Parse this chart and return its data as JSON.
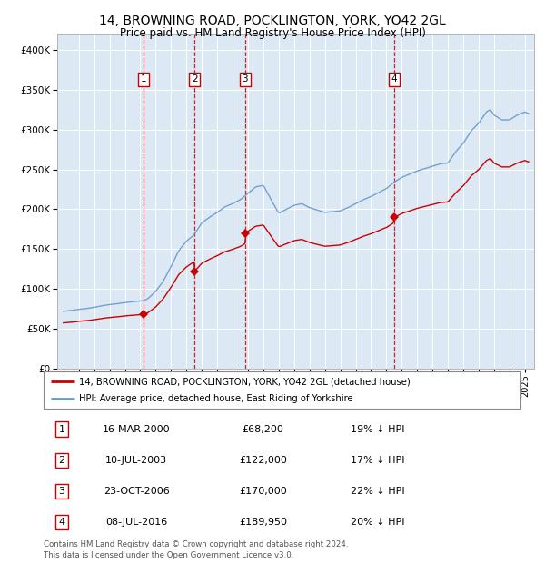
{
  "title": "14, BROWNING ROAD, POCKLINGTON, YORK, YO42 2GL",
  "subtitle": "Price paid vs. HM Land Registry's House Price Index (HPI)",
  "legend_property": "14, BROWNING ROAD, POCKLINGTON, YORK, YO42 2GL (detached house)",
  "legend_hpi": "HPI: Average price, detached house, East Riding of Yorkshire",
  "footer": "Contains HM Land Registry data © Crown copyright and database right 2024.\nThis data is licensed under the Open Government Licence v3.0.",
  "sales": [
    {
      "label": "1",
      "date": "16-MAR-2000",
      "price": 68200,
      "pct": "19%",
      "dir": "↓"
    },
    {
      "label": "2",
      "date": "10-JUL-2003",
      "price": 122000,
      "pct": "17%",
      "dir": "↓"
    },
    {
      "label": "3",
      "date": "23-OCT-2006",
      "price": 170000,
      "pct": "22%",
      "dir": "↓"
    },
    {
      "label": "4",
      "date": "08-JUL-2016",
      "price": 189950,
      "pct": "20%",
      "dir": "↓"
    }
  ],
  "ylim": [
    0,
    420000
  ],
  "yticks": [
    0,
    50000,
    100000,
    150000,
    200000,
    250000,
    300000,
    350000,
    400000
  ],
  "xlim_start": 1994.6,
  "xlim_end": 2025.6,
  "background_color": "#dce9f5",
  "grid_color": "#ffffff",
  "red_color": "#cc0000",
  "blue_color": "#6699cc",
  "vline_color": "#cc0000",
  "hpi_anchors": [
    [
      1995.0,
      72000
    ],
    [
      1995.5,
      73000
    ],
    [
      1996.0,
      74500
    ],
    [
      1996.5,
      75500
    ],
    [
      1997.0,
      77000
    ],
    [
      1997.5,
      79000
    ],
    [
      1998.0,
      80500
    ],
    [
      1998.5,
      81500
    ],
    [
      1999.0,
      83000
    ],
    [
      1999.5,
      84000
    ],
    [
      2000.0,
      85000
    ],
    [
      2000.25,
      85500
    ],
    [
      2000.5,
      88000
    ],
    [
      2001.0,
      97000
    ],
    [
      2001.5,
      110000
    ],
    [
      2002.0,
      128000
    ],
    [
      2002.5,
      148000
    ],
    [
      2003.0,
      160000
    ],
    [
      2003.5,
      168000
    ],
    [
      2004.0,
      183000
    ],
    [
      2004.5,
      190000
    ],
    [
      2005.0,
      196000
    ],
    [
      2005.5,
      203000
    ],
    [
      2006.0,
      207000
    ],
    [
      2006.5,
      212000
    ],
    [
      2007.0,
      220000
    ],
    [
      2007.5,
      228000
    ],
    [
      2008.0,
      230000
    ],
    [
      2008.5,
      212000
    ],
    [
      2009.0,
      195000
    ],
    [
      2009.5,
      200000
    ],
    [
      2010.0,
      205000
    ],
    [
      2010.5,
      207000
    ],
    [
      2011.0,
      202000
    ],
    [
      2011.5,
      199000
    ],
    [
      2012.0,
      196000
    ],
    [
      2012.5,
      197000
    ],
    [
      2013.0,
      198000
    ],
    [
      2013.5,
      202000
    ],
    [
      2014.0,
      207000
    ],
    [
      2014.5,
      212000
    ],
    [
      2015.0,
      216000
    ],
    [
      2015.5,
      221000
    ],
    [
      2016.0,
      226000
    ],
    [
      2016.5,
      234000
    ],
    [
      2017.0,
      240000
    ],
    [
      2017.5,
      244000
    ],
    [
      2018.0,
      248000
    ],
    [
      2018.5,
      251000
    ],
    [
      2019.0,
      254000
    ],
    [
      2019.5,
      257000
    ],
    [
      2020.0,
      258000
    ],
    [
      2020.5,
      272000
    ],
    [
      2021.0,
      283000
    ],
    [
      2021.5,
      298000
    ],
    [
      2022.0,
      308000
    ],
    [
      2022.5,
      322000
    ],
    [
      2022.75,
      325000
    ],
    [
      2023.0,
      318000
    ],
    [
      2023.5,
      312000
    ],
    [
      2024.0,
      312000
    ],
    [
      2024.5,
      318000
    ],
    [
      2025.0,
      322000
    ],
    [
      2025.2,
      320000
    ]
  ]
}
